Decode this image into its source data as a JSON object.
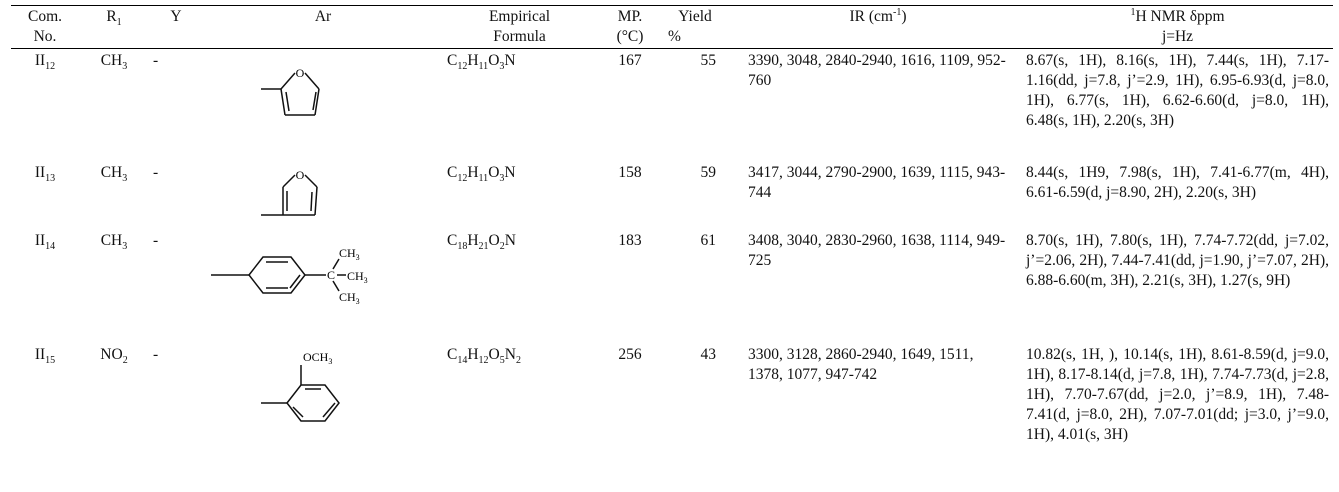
{
  "headers": {
    "com_no_line1": "Com.",
    "com_no_line2": "No.",
    "r1_base": "R",
    "r1_sub": "1",
    "y": "Y",
    "ar": "Ar",
    "formula_line1": "Empirical",
    "formula_line2": "Formula",
    "mp_line1": "MP.",
    "mp_line2": "(°C)",
    "yield_line1": "Yield",
    "yield_line2": "%",
    "ir_base": "IR (cm",
    "ir_sup": "-1",
    "ir_close": ")",
    "nmr_sup": "1",
    "nmr_base": "H NMR δppm",
    "nmr_line2": "j=Hz"
  },
  "rows": [
    {
      "com_base": "II",
      "com_sub": "12",
      "r1_base": "CH",
      "r1_sub": "3",
      "y": "-",
      "ar_label": "",
      "formula": [
        "C",
        "12",
        "H",
        "11",
        "O",
        "3",
        "N"
      ],
      "mp": "167",
      "yield": "55",
      "ir": "3390, 3048, 2840-2940, 1616, 1109, 952-760",
      "nmr": "8.67(s, 1H), 8.16(s, 1H), 7.44(s, 1H), 7.17-1.16(dd, j=7.8, j’=2.9, 1H), 6.95-6.93(d, j=8.0, 1H), 6.77(s, 1H), 6.62-6.60(d, j=8.0, 1H), 6.48(s, 1H), 2.20(s, 3H)"
    },
    {
      "com_base": "II",
      "com_sub": "13",
      "r1_base": "CH",
      "r1_sub": "3",
      "y": "-",
      "ar_label": "",
      "formula": [
        "C",
        "12",
        "H",
        "11",
        "O",
        "3",
        "N"
      ],
      "mp": "158",
      "yield": "59",
      "ir": "3417, 3044, 2790-2900, 1639, 1115, 943-744",
      "nmr": "8.44(s, 1H9, 7.98(s, 1H), 7.41-6.77(m, 4H), 6.61-6.59(d, j=8.90, 2H), 2.20(s, 3H)"
    },
    {
      "com_base": "II",
      "com_sub": "14",
      "r1_base": "CH",
      "r1_sub": "3",
      "y": "-",
      "ar_label": "",
      "formula": [
        "C",
        "18",
        "H",
        "21",
        "O",
        "2",
        "N"
      ],
      "mp": "183",
      "yield": "61",
      "ir": "3408, 3040, 2830-2960, 1638, 1114, 949-725",
      "nmr": "8.70(s, 1H), 7.80(s, 1H), 7.74-7.72(dd, j=7.02, j’=2.06, 2H), 7.44-7.41(dd, j=1.90, j’=7.07, 2H), 6.88-6.60(m, 3H), 2.21(s, 3H), 1.27(s, 9H)"
    },
    {
      "com_base": "II",
      "com_sub": "15",
      "r1_base": "NO",
      "r1_sub": "2",
      "y": "-",
      "ar_label": "OCH3",
      "formula": [
        "C",
        "14",
        "H",
        "12",
        "O",
        "5",
        "N",
        "2"
      ],
      "mp": "256",
      "yield": "43",
      "ir": "3300, 3128, 2860-2940, 1649, 1511, 1378, 1077, 947-742",
      "nmr": "10.82(s, 1H, ), 10.14(s, 1H), 8.61-8.59(d, j=9.0, 1H), 8.17-8.14(d, j=7.8, 1H), 7.74-7.73(d, j=2.8, 1H), 7.70-7.67(dd, j=2.0, j’=8.9, 1H), 7.48-7.41(d, j=8.0, 2H), 7.07-7.01(dd; j=3.0, j’=9.0, 1H), 4.01(s, 3H)"
    }
  ],
  "structures": {
    "furan_atom": "O",
    "tbutyl_ch3_a": "CH",
    "tbutyl_ch3_b": "CH",
    "tbutyl_ch3_c": "CH",
    "tbutyl_c": "C",
    "ch3_sub": "3",
    "och3_label": "OCH",
    "och3_sub": "3"
  }
}
